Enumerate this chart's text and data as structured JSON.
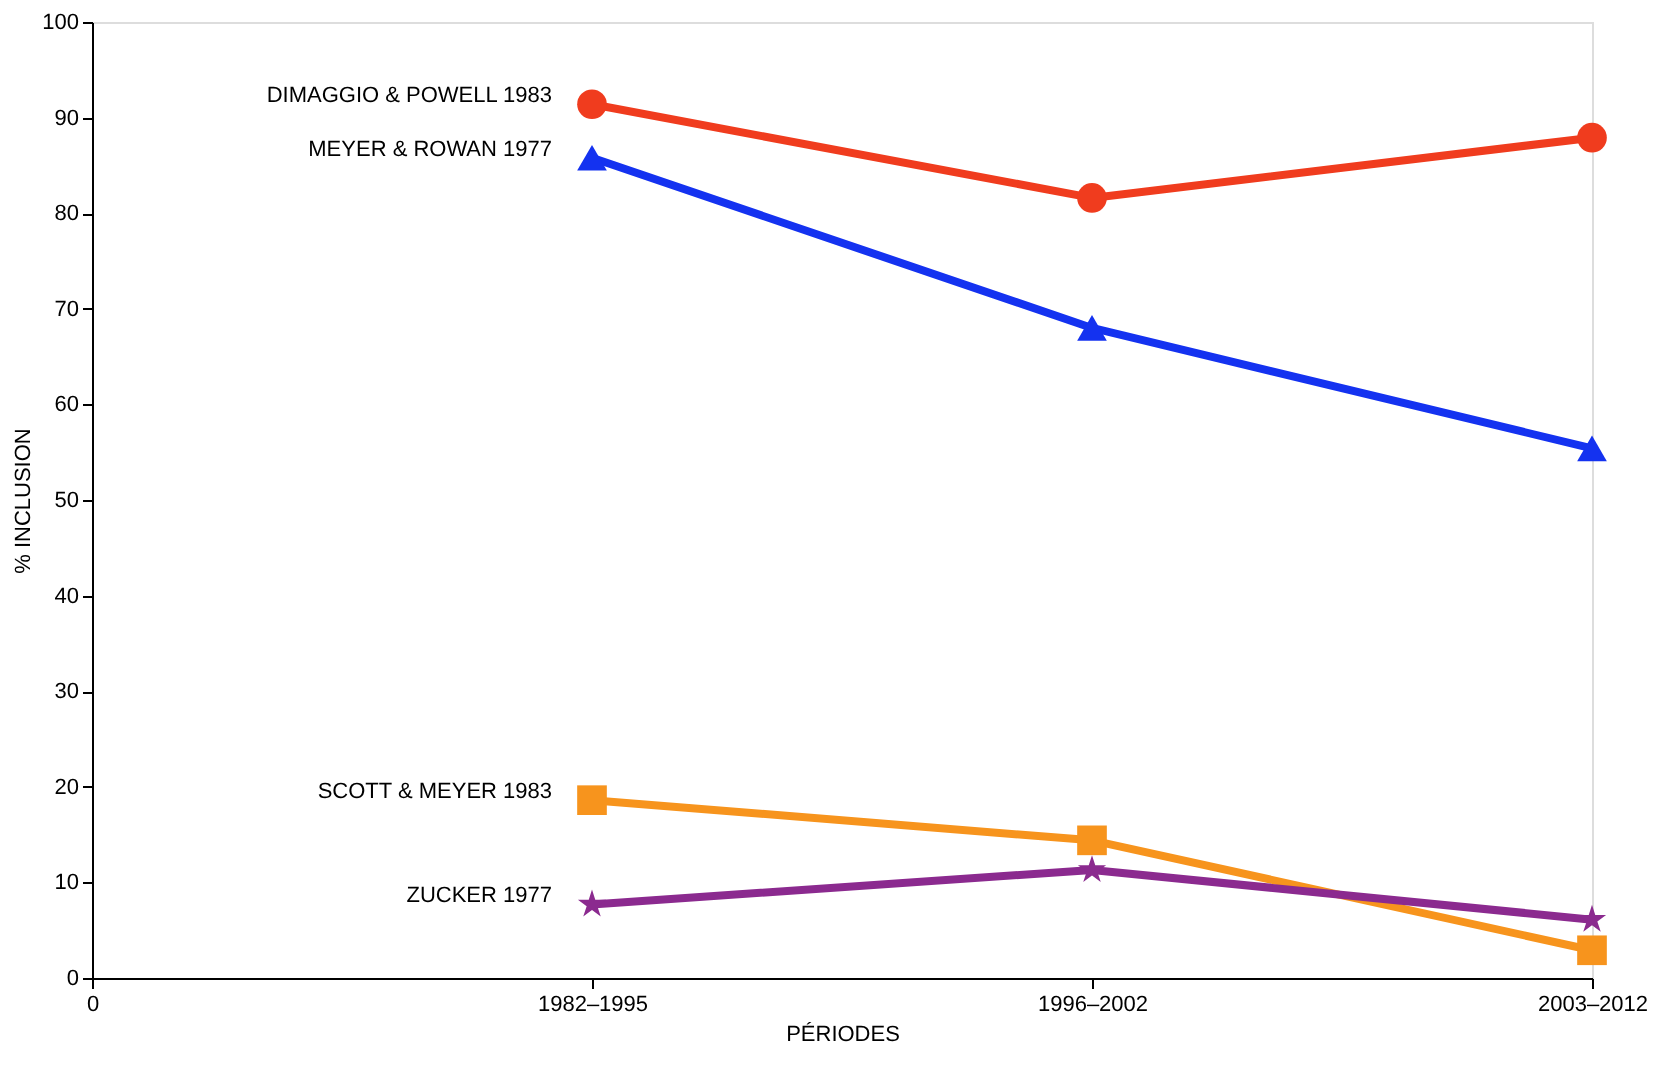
{
  "chart_data": {
    "type": "line",
    "xlabel": "PÉRIODES",
    "ylabel": "% INCLUSION",
    "categories": [
      "0",
      "1982–1995",
      "1996–2002",
      "2003–2012"
    ],
    "ylim": [
      0,
      100
    ],
    "yticks": [
      0,
      10,
      20,
      30,
      40,
      50,
      60,
      70,
      80,
      90,
      100
    ],
    "grid": false,
    "legend": false,
    "line_style": "solid",
    "series": [
      {
        "name": "DIMAGGIO & POWELL 1983",
        "color": "#f03c1e",
        "marker": "circle",
        "values": [
          null,
          91.4,
          81.6,
          87.9
        ]
      },
      {
        "name": "MEYER & ROWAN 1977",
        "color": "#1432f0",
        "marker": "triangle",
        "values": [
          null,
          85.8,
          68,
          55.4
        ]
      },
      {
        "name": "SCOTT & MEYER 1983",
        "color": "#f7941d",
        "marker": "square",
        "values": [
          null,
          18.6,
          14.4,
          2.9
        ]
      },
      {
        "name": "ZUCKER 1977",
        "color": "#8b2a8f",
        "marker": "star",
        "values": [
          null,
          7.7,
          11.3,
          6.1
        ]
      }
    ]
  }
}
